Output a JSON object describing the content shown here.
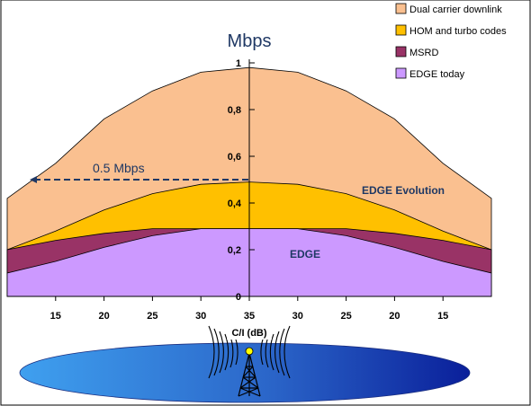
{
  "chart_data": {
    "type": "area",
    "unit_label": "Mbps",
    "xlabel": "C/I (dB)",
    "x_tick_labels": [
      "15",
      "20",
      "25",
      "30",
      "35",
      "30",
      "25",
      "20",
      "15"
    ],
    "y_tick_labels": [
      "0",
      "0,2",
      "0,4",
      "0,6",
      "0,8",
      "1"
    ],
    "ylim": [
      0,
      1
    ],
    "grid": false,
    "legend_position": "top-right",
    "x_positions": [
      11,
      15,
      20,
      25,
      30,
      35,
      30,
      25,
      20,
      15,
      11
    ],
    "series": [
      {
        "name": "Dual carrier downlink",
        "color": "#fac090",
        "values": [
          0.42,
          0.57,
          0.76,
          0.88,
          0.96,
          0.98,
          0.96,
          0.88,
          0.76,
          0.57,
          0.42
        ]
      },
      {
        "name": "HOM and turbo codes",
        "color": "#ffc000",
        "values": [
          0.2,
          0.28,
          0.37,
          0.44,
          0.48,
          0.49,
          0.48,
          0.44,
          0.37,
          0.28,
          0.2
        ]
      },
      {
        "name": "MSRD",
        "color": "#993366",
        "values": [
          0.2,
          0.24,
          0.27,
          0.29,
          0.29,
          0.29,
          0.29,
          0.29,
          0.27,
          0.24,
          0.2
        ]
      },
      {
        "name": "EDGE today",
        "color": "#cc99ff",
        "values": [
          0.1,
          0.15,
          0.21,
          0.26,
          0.29,
          0.29,
          0.29,
          0.26,
          0.21,
          0.15,
          0.1
        ]
      }
    ],
    "annotations": {
      "reference_label": "0.5 Mbps",
      "reference_value": 0.5,
      "edge_evolution": "EDGE Evolution",
      "edge": "EDGE"
    }
  }
}
